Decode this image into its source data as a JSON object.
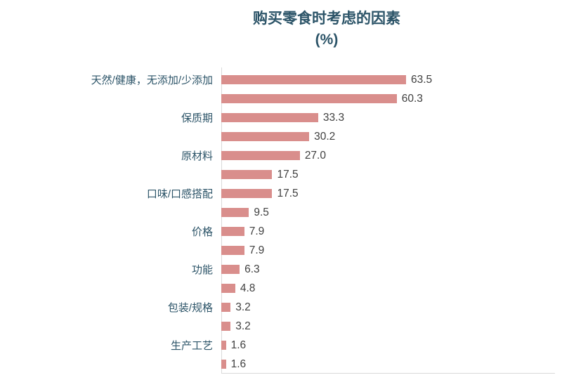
{
  "chart_data": {
    "type": "bar",
    "orientation": "horizontal",
    "title": "购买零食时考虑的因素",
    "subtitle": "(%)",
    "legend": "none",
    "grid": "off",
    "xlim": [
      0,
      70
    ],
    "categories": [
      "天然/健康，无添加/少添加",
      "保质期",
      "原材料",
      "口味/口感搭配",
      "价格",
      "功能",
      "包装/规格",
      "生产工艺"
    ],
    "groups": [
      {
        "label": "天然/健康，无添加/少添加",
        "values": [
          "63.5",
          "60.3"
        ]
      },
      {
        "label": "保质期",
        "values": [
          "33.3",
          "30.2"
        ]
      },
      {
        "label": "原材料",
        "values": [
          "27.0",
          "17.5"
        ]
      },
      {
        "label": "口味/口感搭配",
        "values": [
          "17.5",
          "9.5"
        ]
      },
      {
        "label": "价格",
        "values": [
          "7.9",
          "7.9"
        ]
      },
      {
        "label": "功能",
        "values": [
          "6.3",
          "4.8"
        ]
      },
      {
        "label": "包装/规格",
        "values": [
          "3.2",
          "3.2"
        ]
      },
      {
        "label": "生产工艺",
        "values": [
          "1.6",
          "1.6"
        ]
      }
    ],
    "series": [
      {
        "name": "series-1",
        "values": [
          63.5,
          33.3,
          27.0,
          17.5,
          7.9,
          6.3,
          3.2,
          1.6
        ]
      },
      {
        "name": "series-2",
        "values": [
          60.3,
          30.2,
          17.5,
          9.5,
          7.9,
          4.8,
          3.2,
          1.6
        ]
      }
    ],
    "colors": {
      "bar": "#d98e8c",
      "title_text": "#2c5468",
      "category_text": "#2c5468",
      "value_text": "#404040",
      "axis_line": "#d9d9d9"
    }
  }
}
